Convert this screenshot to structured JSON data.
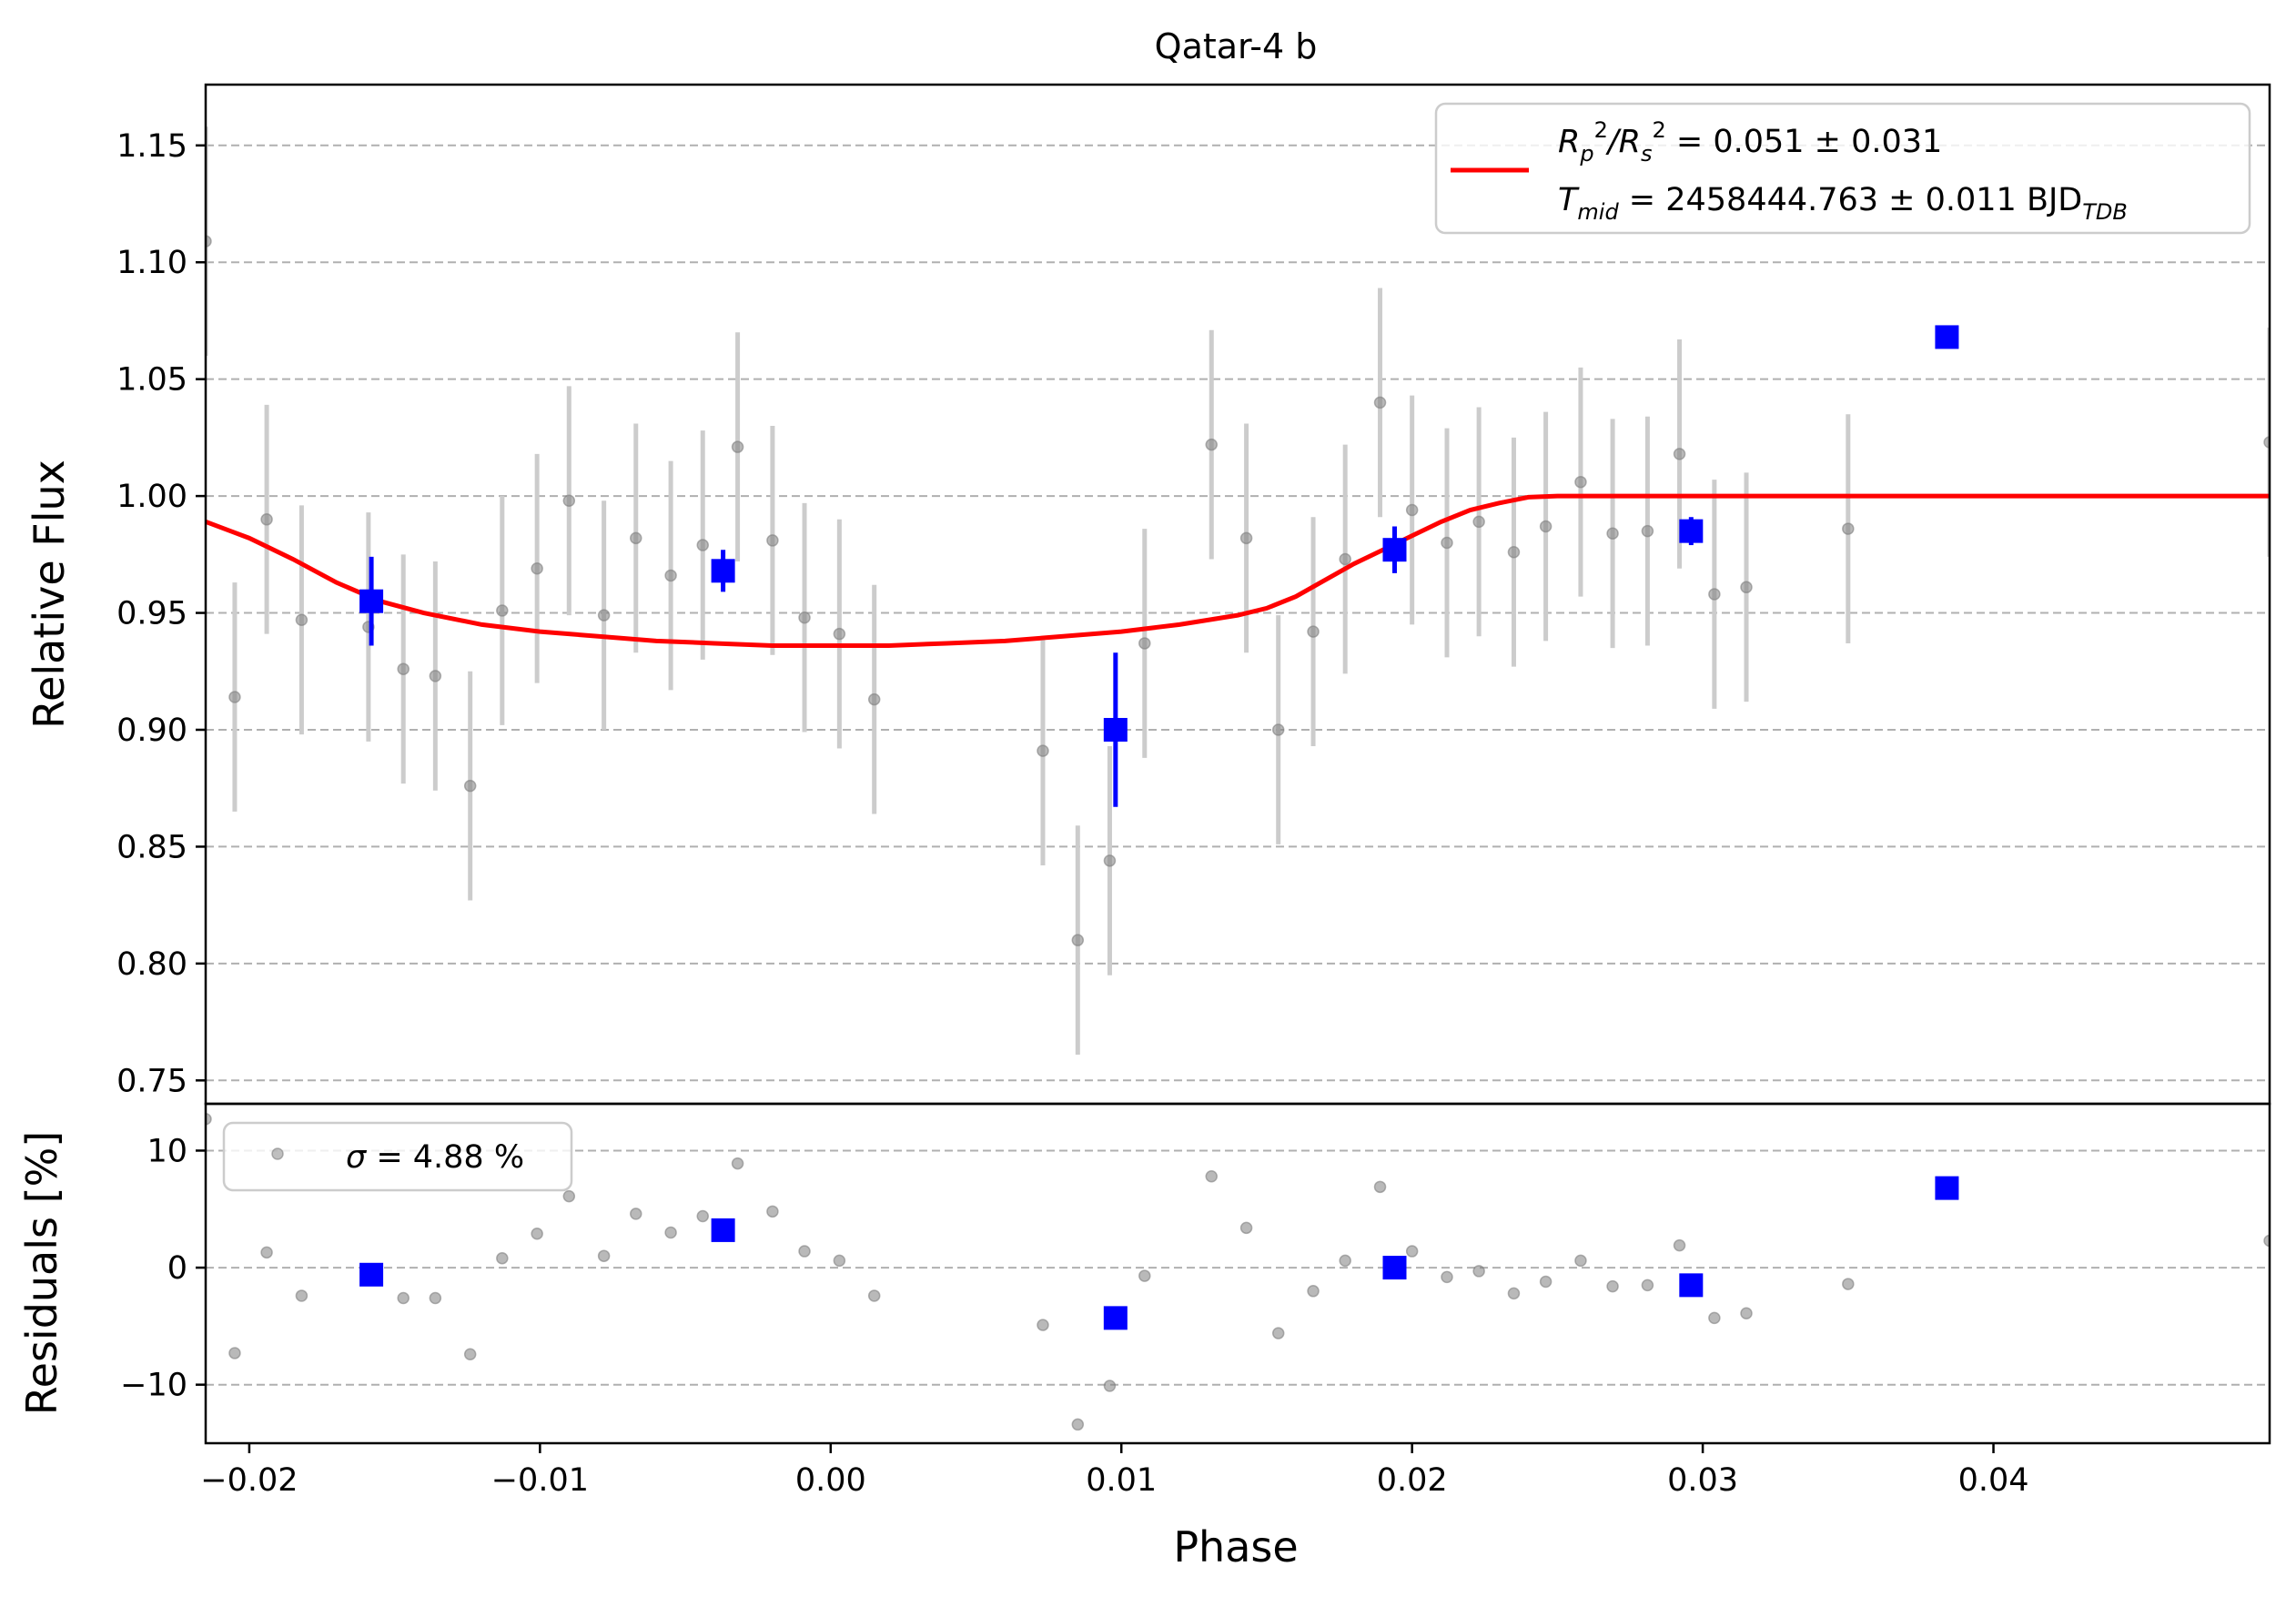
{
  "chart_data": {
    "type": "scatter",
    "title": "Qatar-4 b",
    "xlabel": "Phase",
    "xlim": [
      -0.0215,
      0.0495
    ],
    "x_ticks": [
      -0.02,
      -0.01,
      0.0,
      0.01,
      0.02,
      0.03,
      0.04
    ],
    "x_tick_labels": [
      "−0.02",
      "−0.01",
      "0.00",
      "0.01",
      "0.02",
      "0.03",
      "0.04"
    ],
    "panels": {
      "flux": {
        "ylabel": "Relative Flux",
        "ylim": [
          0.74,
          1.176
        ],
        "y_ticks": [
          0.75,
          0.8,
          0.85,
          0.9,
          0.95,
          1.0,
          1.05,
          1.1,
          1.15
        ],
        "y_tick_labels": [
          "0.75",
          "0.80",
          "0.85",
          "0.90",
          "0.95",
          "1.00",
          "1.05",
          "1.10",
          "1.15"
        ],
        "grid": "horizontal dashed",
        "legend": {
          "placement": "upper-right",
          "line1_a": "R",
          "line1_a_sub": "p",
          "line1_a_sup": "2",
          "line1_b": "/R",
          "line1_b_sub": "s",
          "line1_b_sup": "2",
          "line1_value": " = 0.051 ± 0.031",
          "line2_a": "T",
          "line2_a_sub": "mid",
          "line2_value": " = 2458444.763 ± 0.011 BJD",
          "line2_unit_sub": "TDB"
        },
        "raw_points": {
          "color": "#808080",
          "errorbar_color": "#cccccc",
          "x": [
            -0.0215,
            -0.0205,
            -0.0194,
            -0.0182,
            -0.0159,
            -0.0147,
            -0.0136,
            -0.0124,
            -0.0113,
            -0.0101,
            -0.009,
            -0.0078,
            -0.0067,
            -0.0055,
            -0.0044,
            -0.0032,
            -0.002,
            -0.0009,
            0.0003,
            0.0015,
            0.0073,
            0.0085,
            0.0096,
            0.0108,
            0.0131,
            0.0143,
            0.0154,
            0.0166,
            0.0177,
            0.0189,
            0.02,
            0.0212,
            0.0223,
            0.0235,
            0.0246,
            0.0258,
            0.0269,
            0.0281,
            0.0292,
            0.0304,
            0.0315,
            0.035,
            0.0495
          ],
          "y": [
            1.109,
            0.914,
            0.99,
            0.947,
            0.944,
            0.926,
            0.923,
            0.876,
            0.951,
            0.969,
            0.998,
            0.949,
            0.982,
            0.966,
            0.979,
            1.021,
            0.981,
            0.948,
            0.941,
            0.913,
            0.891,
            0.81,
            0.844,
            0.937,
            1.022,
            0.982,
            0.9,
            0.942,
            0.973,
            1.04,
            0.994,
            0.98,
            0.989,
            0.976,
            0.987,
            1.006,
            0.984,
            0.985,
            1.018,
            0.958,
            0.961,
            0.986,
            1.023
          ],
          "yerr": 0.049
        },
        "binned_points": {
          "color": "#0000ff",
          "x": [
            -0.0158,
            -0.0037,
            0.0098,
            0.0194,
            0.0296,
            0.0384
          ],
          "y": [
            0.955,
            0.968,
            0.9,
            0.977,
            0.985,
            1.068
          ],
          "yerr": [
            0.019,
            0.009,
            0.033,
            0.01,
            0.006,
            0.003
          ]
        },
        "model": {
          "color": "#ff0000",
          "x": [
            -0.0215,
            -0.02,
            -0.0185,
            -0.017,
            -0.0155,
            -0.014,
            -0.012,
            -0.01,
            -0.008,
            -0.006,
            -0.004,
            -0.002,
            0.0,
            0.002,
            0.004,
            0.006,
            0.008,
            0.01,
            0.012,
            0.014,
            0.015,
            0.016,
            0.017,
            0.018,
            0.019,
            0.02,
            0.021,
            0.022,
            0.023,
            0.024,
            0.025,
            0.026,
            0.03,
            0.04,
            0.0495
          ],
          "y": [
            0.989,
            0.982,
            0.973,
            0.963,
            0.955,
            0.95,
            0.945,
            0.942,
            0.94,
            0.938,
            0.937,
            0.936,
            0.936,
            0.936,
            0.937,
            0.938,
            0.94,
            0.942,
            0.945,
            0.949,
            0.952,
            0.957,
            0.964,
            0.971,
            0.977,
            0.983,
            0.989,
            0.994,
            0.997,
            0.9995,
            1.0,
            1.0,
            1.0,
            1.0,
            1.0
          ]
        }
      },
      "residuals": {
        "ylabel": "Residuals [%]",
        "ylim": [
          -15,
          14
        ],
        "y_ticks": [
          -10,
          0,
          10
        ],
        "y_tick_labels": [
          "−10",
          "0",
          "10"
        ],
        "grid": "horizontal dashed",
        "legend": {
          "placement": "upper-left",
          "sigma_symbol": "σ",
          "sigma_text": " = 4.88 %"
        },
        "raw_points": {
          "color": "#808080",
          "x": [
            -0.0215,
            -0.0205,
            -0.0194,
            -0.0182,
            -0.0159,
            -0.0147,
            -0.0136,
            -0.0124,
            -0.0113,
            -0.0101,
            -0.009,
            -0.0078,
            -0.0067,
            -0.0055,
            -0.0044,
            -0.0032,
            -0.002,
            -0.0009,
            0.0003,
            0.0015,
            0.0073,
            0.0085,
            0.0096,
            0.0108,
            0.0131,
            0.0143,
            0.0154,
            0.0166,
            0.0177,
            0.0189,
            0.02,
            0.0212,
            0.0223,
            0.0235,
            0.0246,
            0.0258,
            0.0269,
            0.0281,
            0.0292,
            0.0304,
            0.0315,
            0.035,
            0.0495
          ],
          "y": [
            12.7,
            -7.3,
            1.3,
            -2.4,
            -0.3,
            -2.6,
            -2.6,
            -7.4,
            0.8,
            2.9,
            6.1,
            1.0,
            4.6,
            3.0,
            4.4,
            8.9,
            4.8,
            1.4,
            0.6,
            -2.4,
            -4.9,
            -13.4,
            -10.1,
            -0.7,
            7.8,
            3.4,
            -5.6,
            -2.0,
            0.6,
            6.9,
            1.4,
            -0.8,
            -0.3,
            -2.2,
            -1.2,
            0.6,
            -1.6,
            -1.5,
            1.9,
            -4.3,
            -3.9,
            -1.4,
            2.3
          ]
        },
        "binned_points": {
          "color": "#0000ff",
          "x": [
            -0.0158,
            -0.0037,
            0.0098,
            0.0194,
            0.0296,
            0.0384
          ],
          "y": [
            -0.6,
            3.2,
            -4.3,
            0.0,
            -1.5,
            6.8
          ]
        }
      }
    }
  }
}
